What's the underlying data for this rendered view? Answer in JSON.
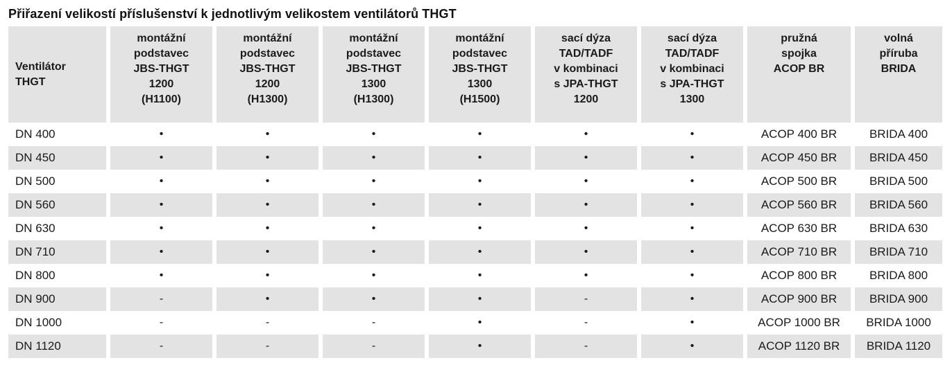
{
  "title": "Přiřazení velikostí příslušenství k jednotlivým velikostem ventilátorů THGT",
  "table": {
    "columns": [
      "Ventilátor\nTHGT",
      "montážní\npodstavec\nJBS-THGT\n1200\n(H1100)",
      "montážní\npodstavec\nJBS-THGT\n1200\n(H1300)",
      "montážní\npodstavec\nJBS-THGT\n1300\n(H1300)",
      "montážní\npodstavec\nJBS-THGT\n1300\n(H1500)",
      "sací dýza\nTAD/TADF\nv kombinaci\ns JPA-THGT\n1200",
      "sací dýza\nTAD/TADF\nv kombinaci\ns JPA-THGT\n1300",
      "pružná\nspojka\nACOP BR",
      "volná\npříruba\nBRIDA"
    ],
    "markers": {
      "available": "•",
      "not_available": "-"
    },
    "rows": [
      {
        "fan": "DN 400",
        "values": [
          "•",
          "•",
          "•",
          "•",
          "•",
          "•"
        ],
        "acop": "ACOP 400 BR",
        "brida": "BRIDA 400"
      },
      {
        "fan": "DN 450",
        "values": [
          "•",
          "•",
          "•",
          "•",
          "•",
          "•"
        ],
        "acop": "ACOP 450 BR",
        "brida": "BRIDA 450"
      },
      {
        "fan": "DN 500",
        "values": [
          "•",
          "•",
          "•",
          "•",
          "•",
          "•"
        ],
        "acop": "ACOP 500 BR",
        "brida": "BRIDA 500"
      },
      {
        "fan": "DN 560",
        "values": [
          "•",
          "•",
          "•",
          "•",
          "•",
          "•"
        ],
        "acop": "ACOP 560 BR",
        "brida": "BRIDA 560"
      },
      {
        "fan": "DN 630",
        "values": [
          "•",
          "•",
          "•",
          "•",
          "•",
          "•"
        ],
        "acop": "ACOP 630 BR",
        "brida": "BRIDA 630"
      },
      {
        "fan": "DN 710",
        "values": [
          "•",
          "•",
          "•",
          "•",
          "•",
          "•"
        ],
        "acop": "ACOP 710 BR",
        "brida": "BRIDA 710"
      },
      {
        "fan": "DN 800",
        "values": [
          "•",
          "•",
          "•",
          "•",
          "•",
          "•"
        ],
        "acop": "ACOP 800 BR",
        "brida": "BRIDA 800"
      },
      {
        "fan": "DN 900",
        "values": [
          "-",
          "•",
          "•",
          "•",
          "-",
          "•"
        ],
        "acop": "ACOP 900 BR",
        "brida": "BRIDA 900"
      },
      {
        "fan": "DN 1000",
        "values": [
          "-",
          "-",
          "-",
          "•",
          "-",
          "•"
        ],
        "acop": "ACOP 1000 BR",
        "brida": "BRIDA 1000"
      },
      {
        "fan": "DN 1120",
        "values": [
          "-",
          "-",
          "-",
          "•",
          "-",
          "•"
        ],
        "acop": "ACOP 1120 BR",
        "brida": "BRIDA 1120"
      }
    ]
  },
  "colors": {
    "cell_background": "#e3e3e3",
    "page_background": "#ffffff",
    "text": "#1a1a1a"
  }
}
